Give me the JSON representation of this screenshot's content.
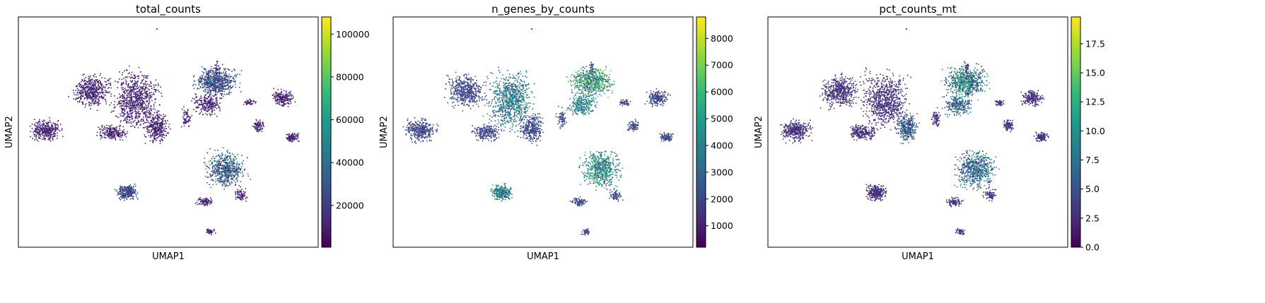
{
  "colors": {
    "viridis": [
      "#440154",
      "#482878",
      "#3e4989",
      "#31688e",
      "#26828e",
      "#1f9e89",
      "#35b779",
      "#6ece58",
      "#b5de2b",
      "#fde725"
    ]
  },
  "chart_data": [
    {
      "type": "scatter",
      "title": "total_counts",
      "xlabel": "UMAP1",
      "ylabel": "UMAP2",
      "colorbar": {
        "range": [
          500,
          108000
        ],
        "ticks": [
          20000,
          40000,
          60000,
          80000,
          100000
        ],
        "tick_labels": [
          "20000",
          "40000",
          "60000",
          "80000",
          "100000"
        ],
        "colormap": "viridis"
      },
      "grid": false,
      "base_level": 0.06,
      "hot_clusters": {
        "A": 0.25,
        "L": 0.35,
        "O": 0.2
      }
    },
    {
      "type": "scatter",
      "title": "n_genes_by_counts",
      "xlabel": "UMAP1",
      "ylabel": "UMAP2",
      "colorbar": {
        "range": [
          200,
          8800
        ],
        "ticks": [
          1000,
          2000,
          3000,
          4000,
          5000,
          6000,
          7000,
          8000
        ],
        "tick_labels": [
          "1000",
          "2000",
          "3000",
          "4000",
          "5000",
          "6000",
          "7000",
          "8000"
        ],
        "colormap": "viridis"
      },
      "grid": false,
      "base_level": 0.18,
      "hot_clusters": {
        "A": 0.55,
        "L": 0.45,
        "O": 0.4,
        "E": 0.35,
        "B": 0.3
      }
    },
    {
      "type": "scatter",
      "title": "pct_counts_mt",
      "xlabel": "UMAP1",
      "ylabel": "UMAP2",
      "colorbar": {
        "range": [
          0,
          19.8
        ],
        "ticks": [
          0,
          2.5,
          5,
          7.5,
          10,
          12.5,
          15,
          17.5
        ],
        "tick_labels": [
          "0.0",
          "2.5",
          "5.0",
          "7.5",
          "10.0",
          "12.5",
          "15.0",
          "17.5"
        ],
        "colormap": "viridis"
      },
      "grid": false,
      "base_level": 0.1,
      "hot_clusters": {
        "A": 0.5,
        "L": 0.35,
        "E": 0.3,
        "D": 0.25
      }
    }
  ]
}
